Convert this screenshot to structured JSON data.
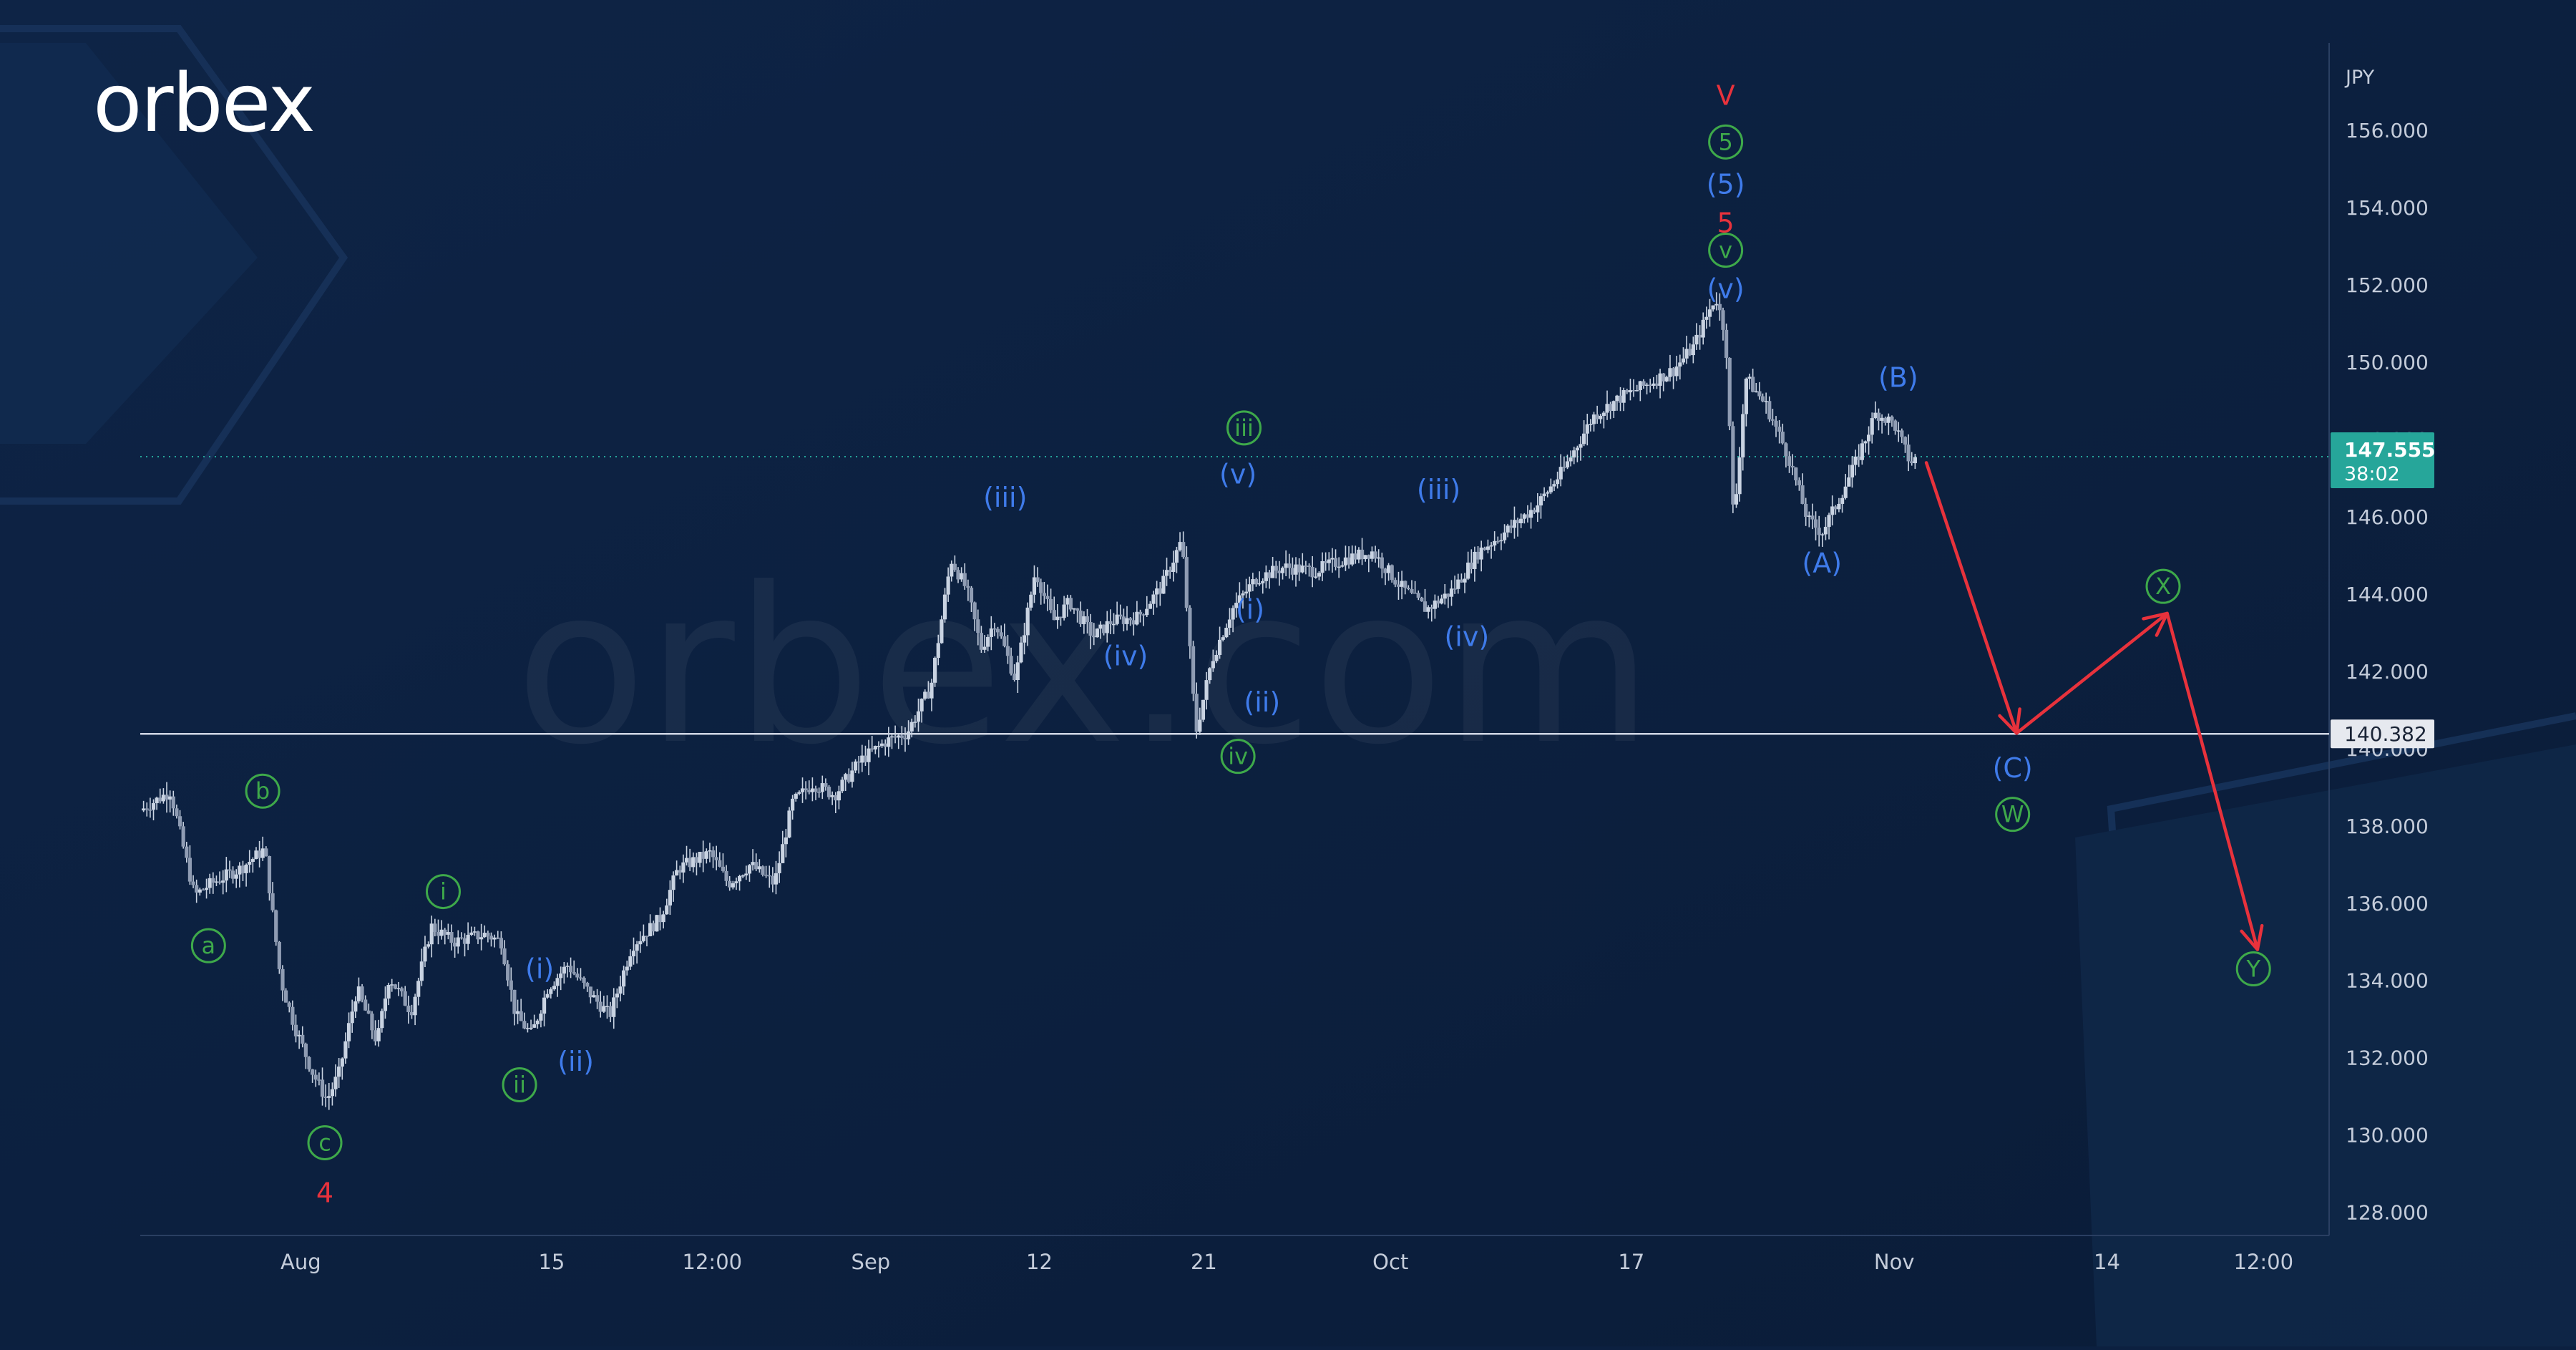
{
  "brand": {
    "logo_text": "orbex",
    "watermark": "orbex.com"
  },
  "colors": {
    "background": "#0c2040",
    "candle": "#c9d3e2",
    "label_blue": "#3f7bea",
    "label_green": "#3ea94a",
    "label_red": "#e8323c",
    "projection_arrow": "#e8323c",
    "level_line": "#cfd6e4",
    "price_line": "#26a69a",
    "axis_text": "#c4ccda"
  },
  "chart_data": {
    "type": "candlestick",
    "symbol_currency": "JPY",
    "ylim": [
      127.4,
      157.8
    ],
    "y_ticks": [
      128,
      130,
      132,
      134,
      136,
      138,
      140,
      142,
      144,
      146,
      148,
      150,
      152,
      154,
      156
    ],
    "y_tick_labels": [
      "128.000",
      "130.000",
      "132.000",
      "134.000",
      "136.000",
      "138.000",
      "140.000",
      "142.000",
      "144.000",
      "146.000",
      "148.000",
      "150.000",
      "152.000",
      "154.000",
      "156.000"
    ],
    "x_range_days": [
      -7,
      102
    ],
    "x_ticks": [
      {
        "label": "Aug",
        "day": 1
      },
      {
        "label": "15",
        "day": 13.5
      },
      {
        "label": "12:00",
        "day": 21.5
      },
      {
        "label": "Sep",
        "day": 29.4
      },
      {
        "label": "12",
        "day": 37.8
      },
      {
        "label": "21",
        "day": 46
      },
      {
        "label": "Oct",
        "day": 55.3
      },
      {
        "label": "17",
        "day": 67.3
      },
      {
        "label": "Nov",
        "day": 80.4
      },
      {
        "label": "14",
        "day": 91
      },
      {
        "label": "12:00",
        "day": 98.8
      }
    ],
    "price_path": [
      [
        -7,
        138.4
      ],
      [
        -5.5,
        138.9
      ],
      [
        -4.3,
        136.2
      ],
      [
        -3.5,
        136.5
      ],
      [
        -2,
        136.9
      ],
      [
        -0.8,
        137.4
      ],
      [
        0,
        134
      ],
      [
        0.7,
        132.8
      ],
      [
        1.6,
        131.6
      ],
      [
        2.3,
        130.9
      ],
      [
        2.9,
        131.6
      ],
      [
        3.8,
        133.8
      ],
      [
        4.8,
        132.4
      ],
      [
        5.4,
        134.1
      ],
      [
        6.5,
        133.2
      ],
      [
        7.5,
        135.4
      ],
      [
        8.6,
        135
      ],
      [
        10.2,
        135.2
      ],
      [
        11,
        135
      ],
      [
        11.7,
        133.1
      ],
      [
        12.5,
        132.6
      ],
      [
        13.3,
        133.8
      ],
      [
        14.3,
        134.4
      ],
      [
        15.5,
        133.6
      ],
      [
        16.4,
        133.1
      ],
      [
        17.5,
        134.9
      ],
      [
        18.9,
        135.6
      ],
      [
        19.8,
        136.9
      ],
      [
        21.4,
        137.3
      ],
      [
        22.3,
        136.5
      ],
      [
        23.4,
        137
      ],
      [
        24.6,
        136.5
      ],
      [
        25.5,
        138.6
      ],
      [
        26.5,
        139.1
      ],
      [
        27.6,
        138.8
      ],
      [
        28.9,
        139.7
      ],
      [
        30.2,
        140.2
      ],
      [
        31.2,
        140.4
      ],
      [
        32.4,
        141.6
      ],
      [
        33.4,
        144.9
      ],
      [
        34.2,
        144.1
      ],
      [
        34.9,
        142.6
      ],
      [
        35.6,
        143.3
      ],
      [
        36.6,
        141.8
      ],
      [
        37.6,
        144.6
      ],
      [
        38.5,
        143.3
      ],
      [
        39.3,
        143.8
      ],
      [
        40.5,
        142.9
      ],
      [
        41.4,
        143.3
      ],
      [
        42.7,
        143.4
      ],
      [
        43.9,
        144.2
      ],
      [
        44.9,
        145.4
      ],
      [
        45.6,
        140.4
      ],
      [
        46.4,
        142.3
      ],
      [
        47.4,
        143.6
      ],
      [
        48.6,
        144.4
      ],
      [
        50,
        144.7
      ],
      [
        51.5,
        144.6
      ],
      [
        53,
        144.9
      ],
      [
        54.4,
        145.1
      ],
      [
        55.8,
        144.2
      ],
      [
        57.1,
        143.6
      ],
      [
        58.4,
        144.1
      ],
      [
        59.7,
        145.1
      ],
      [
        61,
        145.6
      ],
      [
        62.6,
        146.3
      ],
      [
        63.9,
        147.2
      ],
      [
        65.4,
        148.6
      ],
      [
        66.8,
        149.1
      ],
      [
        68,
        149.4
      ],
      [
        69.4,
        149.8
      ],
      [
        70.4,
        150.4
      ],
      [
        71.5,
        151.7
      ],
      [
        72,
        150.7
      ],
      [
        72.4,
        145.8
      ],
      [
        73,
        149.6
      ],
      [
        74,
        148.9
      ],
      [
        75.1,
        147.6
      ],
      [
        76.1,
        145.9
      ],
      [
        76.8,
        145.6
      ],
      [
        77.6,
        146.4
      ],
      [
        78.4,
        147.3
      ],
      [
        79.5,
        148.7
      ],
      [
        80.4,
        148.4
      ],
      [
        81.2,
        147.4
      ],
      [
        81.6,
        147.55
      ]
    ],
    "last_price": {
      "value": 147.555,
      "label": "147.555",
      "countdown": "38:02"
    },
    "level": {
      "value": 140.382,
      "label": "140.382"
    },
    "projection": [
      {
        "day": 82,
        "price": 147.4
      },
      {
        "day": 86.5,
        "price": 140.4
      },
      {
        "day": 94,
        "price": 143.5
      },
      {
        "day": 98.5,
        "price": 134.8
      }
    ],
    "wave_labels": [
      {
        "text": "a",
        "day": -3.6,
        "price": 134.9,
        "color": "green",
        "circle": true
      },
      {
        "text": "b",
        "day": -0.9,
        "price": 138.9,
        "color": "green",
        "circle": true
      },
      {
        "text": "c",
        "day": 2.2,
        "price": 129.8,
        "color": "green",
        "circle": true
      },
      {
        "text": "4",
        "day": 2.2,
        "price": 128.5,
        "color": "red",
        "circle": false
      },
      {
        "text": "i",
        "day": 8.1,
        "price": 136.3,
        "color": "green",
        "circle": true
      },
      {
        "text": "ii",
        "day": 11.9,
        "price": 131.3,
        "color": "green",
        "circle": true
      },
      {
        "text": "(i)",
        "day": 12.9,
        "price": 134.3,
        "color": "blue",
        "circle": false
      },
      {
        "text": "(ii)",
        "day": 14.7,
        "price": 131.9,
        "color": "blue",
        "circle": false
      },
      {
        "text": "(iii)",
        "day": 36.1,
        "price": 146.5,
        "color": "blue",
        "circle": false
      },
      {
        "text": "(iv)",
        "day": 42.1,
        "price": 142.4,
        "color": "blue",
        "circle": false
      },
      {
        "text": "(v)",
        "day": 47.7,
        "price": 147.1,
        "color": "blue",
        "circle": false
      },
      {
        "text": "iii",
        "day": 48,
        "price": 148.3,
        "color": "green",
        "circle": true
      },
      {
        "text": "(i)",
        "day": 48.3,
        "price": 143.6,
        "color": "blue",
        "circle": false
      },
      {
        "text": "(ii)",
        "day": 48.9,
        "price": 141.2,
        "color": "blue",
        "circle": false
      },
      {
        "text": "iv",
        "day": 47.7,
        "price": 139.8,
        "color": "green",
        "circle": true
      },
      {
        "text": "(iii)",
        "day": 57.7,
        "price": 146.7,
        "color": "blue",
        "circle": false
      },
      {
        "text": "(iv)",
        "day": 59.1,
        "price": 142.9,
        "color": "blue",
        "circle": false
      },
      {
        "text": "V",
        "day": 72,
        "price": 156.9,
        "color": "red",
        "circle": false
      },
      {
        "text": "5",
        "day": 72,
        "price": 155.7,
        "color": "green",
        "circle": true
      },
      {
        "text": "(5)",
        "day": 72,
        "price": 154.6,
        "color": "blue",
        "circle": false
      },
      {
        "text": "5",
        "day": 72,
        "price": 153.6,
        "color": "red",
        "circle": false
      },
      {
        "text": "v",
        "day": 72,
        "price": 152.9,
        "color": "green",
        "circle": true
      },
      {
        "text": "(v)",
        "day": 72,
        "price": 151.9,
        "color": "blue",
        "circle": false
      },
      {
        "text": "(B)",
        "day": 80.6,
        "price": 149.6,
        "color": "blue",
        "circle": false
      },
      {
        "text": "(A)",
        "day": 76.8,
        "price": 144.8,
        "color": "blue",
        "circle": false
      },
      {
        "text": "(C)",
        "day": 86.3,
        "price": 139.5,
        "color": "blue",
        "circle": false
      },
      {
        "text": "W",
        "day": 86.3,
        "price": 138.3,
        "color": "green",
        "circle": true
      },
      {
        "text": "X",
        "day": 93.8,
        "price": 144.2,
        "color": "green",
        "circle": true
      },
      {
        "text": "Y",
        "day": 98.3,
        "price": 134.3,
        "color": "green",
        "circle": true
      }
    ]
  }
}
